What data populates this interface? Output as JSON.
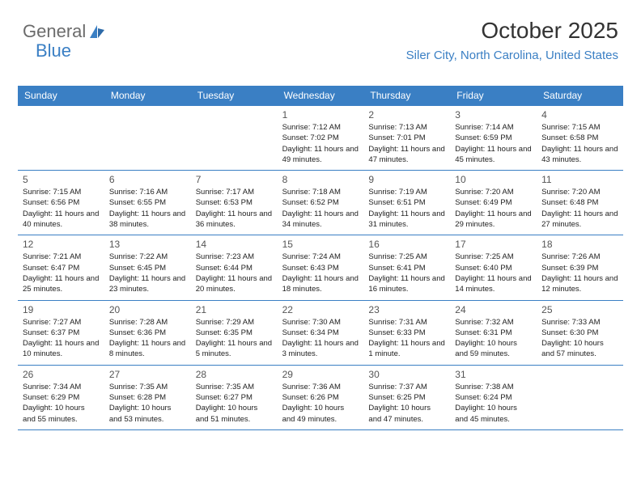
{
  "logo": {
    "text1": "General",
    "text2": "Blue"
  },
  "title": "October 2025",
  "location": "Siler City, North Carolina, United States",
  "colors": {
    "brand": "#3a7fc4",
    "text": "#222222",
    "muted": "#6b6b6b",
    "bg": "#ffffff"
  },
  "day_labels": [
    "Sunday",
    "Monday",
    "Tuesday",
    "Wednesday",
    "Thursday",
    "Friday",
    "Saturday"
  ],
  "weeks": [
    [
      {
        "n": "",
        "sr": "",
        "ss": "",
        "dl": ""
      },
      {
        "n": "",
        "sr": "",
        "ss": "",
        "dl": ""
      },
      {
        "n": "",
        "sr": "",
        "ss": "",
        "dl": ""
      },
      {
        "n": "1",
        "sr": "Sunrise: 7:12 AM",
        "ss": "Sunset: 7:02 PM",
        "dl": "Daylight: 11 hours and 49 minutes."
      },
      {
        "n": "2",
        "sr": "Sunrise: 7:13 AM",
        "ss": "Sunset: 7:01 PM",
        "dl": "Daylight: 11 hours and 47 minutes."
      },
      {
        "n": "3",
        "sr": "Sunrise: 7:14 AM",
        "ss": "Sunset: 6:59 PM",
        "dl": "Daylight: 11 hours and 45 minutes."
      },
      {
        "n": "4",
        "sr": "Sunrise: 7:15 AM",
        "ss": "Sunset: 6:58 PM",
        "dl": "Daylight: 11 hours and 43 minutes."
      }
    ],
    [
      {
        "n": "5",
        "sr": "Sunrise: 7:15 AM",
        "ss": "Sunset: 6:56 PM",
        "dl": "Daylight: 11 hours and 40 minutes."
      },
      {
        "n": "6",
        "sr": "Sunrise: 7:16 AM",
        "ss": "Sunset: 6:55 PM",
        "dl": "Daylight: 11 hours and 38 minutes."
      },
      {
        "n": "7",
        "sr": "Sunrise: 7:17 AM",
        "ss": "Sunset: 6:53 PM",
        "dl": "Daylight: 11 hours and 36 minutes."
      },
      {
        "n": "8",
        "sr": "Sunrise: 7:18 AM",
        "ss": "Sunset: 6:52 PM",
        "dl": "Daylight: 11 hours and 34 minutes."
      },
      {
        "n": "9",
        "sr": "Sunrise: 7:19 AM",
        "ss": "Sunset: 6:51 PM",
        "dl": "Daylight: 11 hours and 31 minutes."
      },
      {
        "n": "10",
        "sr": "Sunrise: 7:20 AM",
        "ss": "Sunset: 6:49 PM",
        "dl": "Daylight: 11 hours and 29 minutes."
      },
      {
        "n": "11",
        "sr": "Sunrise: 7:20 AM",
        "ss": "Sunset: 6:48 PM",
        "dl": "Daylight: 11 hours and 27 minutes."
      }
    ],
    [
      {
        "n": "12",
        "sr": "Sunrise: 7:21 AM",
        "ss": "Sunset: 6:47 PM",
        "dl": "Daylight: 11 hours and 25 minutes."
      },
      {
        "n": "13",
        "sr": "Sunrise: 7:22 AM",
        "ss": "Sunset: 6:45 PM",
        "dl": "Daylight: 11 hours and 23 minutes."
      },
      {
        "n": "14",
        "sr": "Sunrise: 7:23 AM",
        "ss": "Sunset: 6:44 PM",
        "dl": "Daylight: 11 hours and 20 minutes."
      },
      {
        "n": "15",
        "sr": "Sunrise: 7:24 AM",
        "ss": "Sunset: 6:43 PM",
        "dl": "Daylight: 11 hours and 18 minutes."
      },
      {
        "n": "16",
        "sr": "Sunrise: 7:25 AM",
        "ss": "Sunset: 6:41 PM",
        "dl": "Daylight: 11 hours and 16 minutes."
      },
      {
        "n": "17",
        "sr": "Sunrise: 7:25 AM",
        "ss": "Sunset: 6:40 PM",
        "dl": "Daylight: 11 hours and 14 minutes."
      },
      {
        "n": "18",
        "sr": "Sunrise: 7:26 AM",
        "ss": "Sunset: 6:39 PM",
        "dl": "Daylight: 11 hours and 12 minutes."
      }
    ],
    [
      {
        "n": "19",
        "sr": "Sunrise: 7:27 AM",
        "ss": "Sunset: 6:37 PM",
        "dl": "Daylight: 11 hours and 10 minutes."
      },
      {
        "n": "20",
        "sr": "Sunrise: 7:28 AM",
        "ss": "Sunset: 6:36 PM",
        "dl": "Daylight: 11 hours and 8 minutes."
      },
      {
        "n": "21",
        "sr": "Sunrise: 7:29 AM",
        "ss": "Sunset: 6:35 PM",
        "dl": "Daylight: 11 hours and 5 minutes."
      },
      {
        "n": "22",
        "sr": "Sunrise: 7:30 AM",
        "ss": "Sunset: 6:34 PM",
        "dl": "Daylight: 11 hours and 3 minutes."
      },
      {
        "n": "23",
        "sr": "Sunrise: 7:31 AM",
        "ss": "Sunset: 6:33 PM",
        "dl": "Daylight: 11 hours and 1 minute."
      },
      {
        "n": "24",
        "sr": "Sunrise: 7:32 AM",
        "ss": "Sunset: 6:31 PM",
        "dl": "Daylight: 10 hours and 59 minutes."
      },
      {
        "n": "25",
        "sr": "Sunrise: 7:33 AM",
        "ss": "Sunset: 6:30 PM",
        "dl": "Daylight: 10 hours and 57 minutes."
      }
    ],
    [
      {
        "n": "26",
        "sr": "Sunrise: 7:34 AM",
        "ss": "Sunset: 6:29 PM",
        "dl": "Daylight: 10 hours and 55 minutes."
      },
      {
        "n": "27",
        "sr": "Sunrise: 7:35 AM",
        "ss": "Sunset: 6:28 PM",
        "dl": "Daylight: 10 hours and 53 minutes."
      },
      {
        "n": "28",
        "sr": "Sunrise: 7:35 AM",
        "ss": "Sunset: 6:27 PM",
        "dl": "Daylight: 10 hours and 51 minutes."
      },
      {
        "n": "29",
        "sr": "Sunrise: 7:36 AM",
        "ss": "Sunset: 6:26 PM",
        "dl": "Daylight: 10 hours and 49 minutes."
      },
      {
        "n": "30",
        "sr": "Sunrise: 7:37 AM",
        "ss": "Sunset: 6:25 PM",
        "dl": "Daylight: 10 hours and 47 minutes."
      },
      {
        "n": "31",
        "sr": "Sunrise: 7:38 AM",
        "ss": "Sunset: 6:24 PM",
        "dl": "Daylight: 10 hours and 45 minutes."
      },
      {
        "n": "",
        "sr": "",
        "ss": "",
        "dl": ""
      }
    ]
  ]
}
